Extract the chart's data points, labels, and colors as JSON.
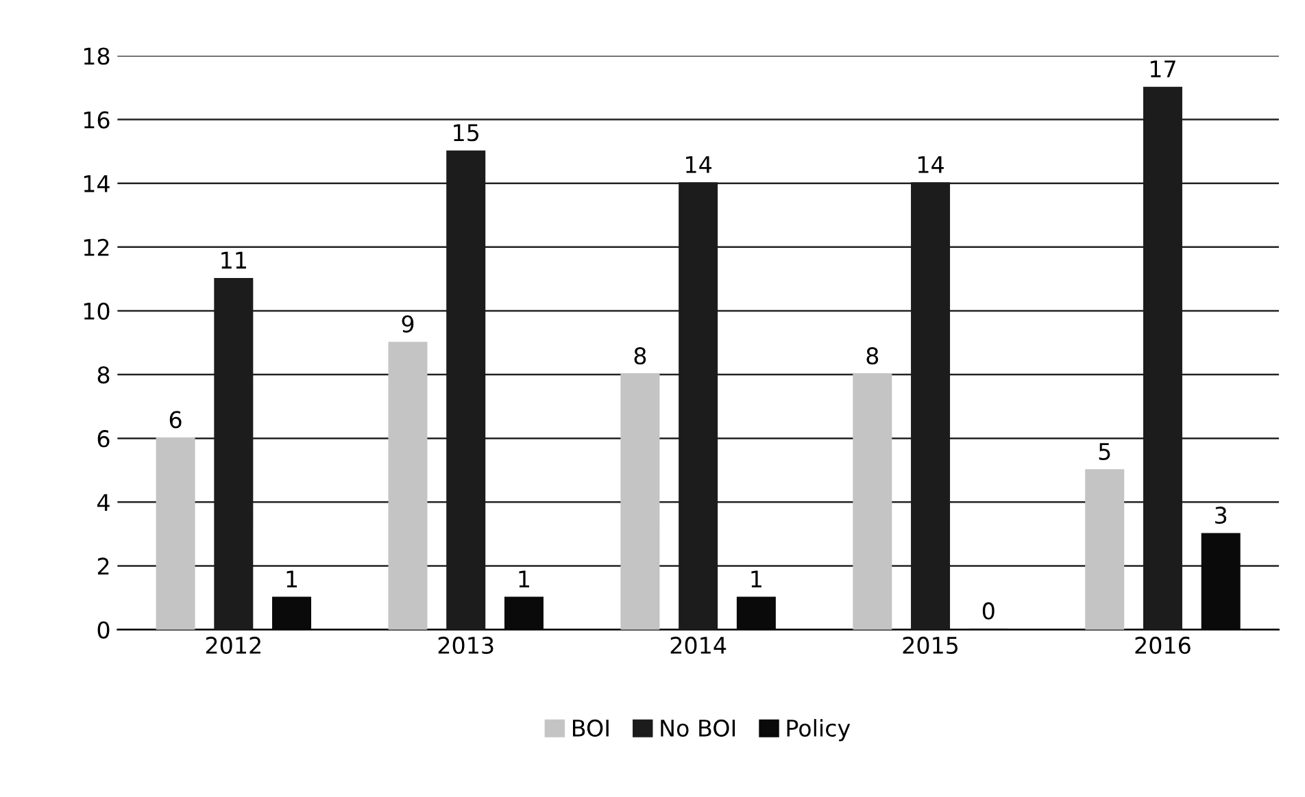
{
  "chart_data": {
    "type": "bar",
    "categories": [
      "2012",
      "2013",
      "2014",
      "2015",
      "2016"
    ],
    "series": [
      {
        "name": "BOI",
        "color": "#c4c4c4",
        "values": [
          6,
          9,
          8,
          8,
          5
        ]
      },
      {
        "name": "No BOI",
        "color": "#1c1c1c",
        "values": [
          11,
          15,
          14,
          14,
          17
        ]
      },
      {
        "name": "Policy",
        "color": "#0a0a0a",
        "values": [
          1,
          1,
          1,
          0,
          3
        ]
      }
    ],
    "ylim": [
      0,
      18
    ],
    "yticks": [
      0,
      2,
      4,
      6,
      8,
      10,
      12,
      14,
      16,
      18
    ],
    "grid": "y",
    "legend": "bottom",
    "data_labels": true
  }
}
